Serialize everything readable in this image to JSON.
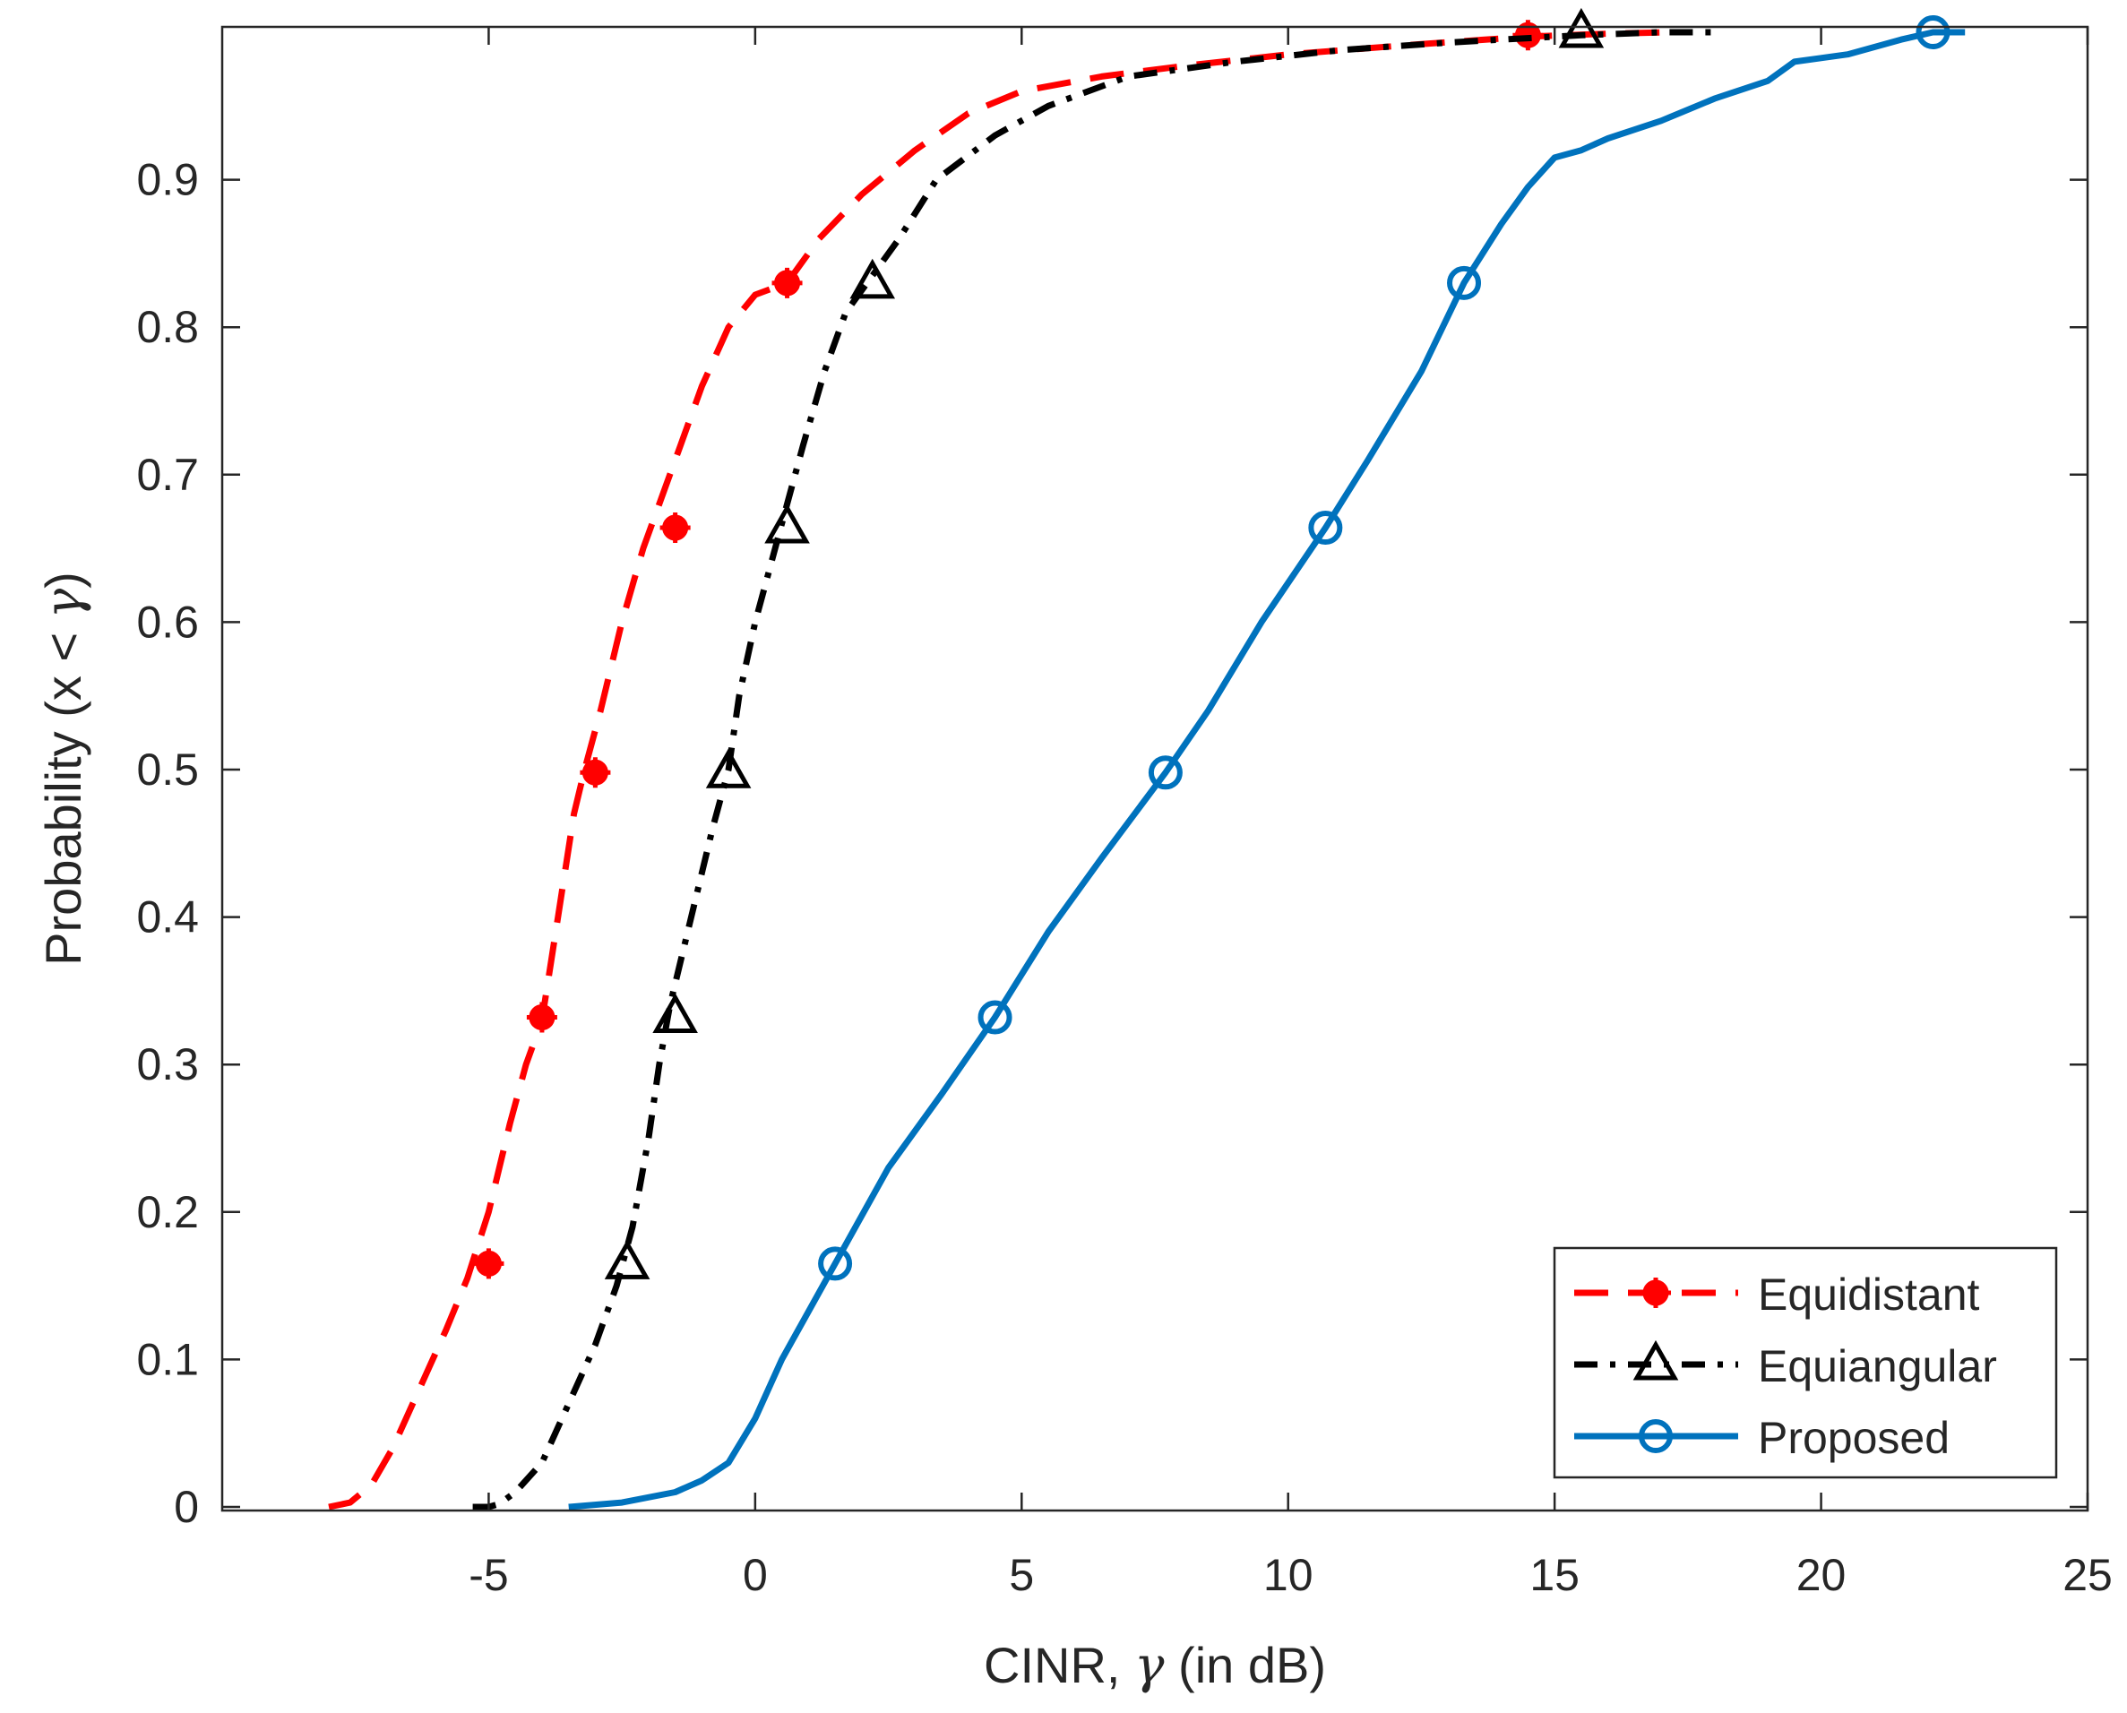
{
  "chart_data": {
    "type": "line",
    "title": "",
    "xlabel_prefix": "CINR, ",
    "xlabel_symbol": "γ",
    "xlabel_suffix": " (in dB)",
    "ylabel_prefix": "Probability (x < ",
    "ylabel_symbol": "γ",
    "ylabel_suffix": ")",
    "xlim": [
      -10,
      25
    ],
    "ylim": [
      0,
      1
    ],
    "xticks": [
      -5,
      0,
      5,
      10,
      15,
      20,
      25
    ],
    "xtick_labels": [
      "-5",
      "0",
      "5",
      "10",
      "15",
      "20",
      "25"
    ],
    "yticks": [
      0,
      0.1,
      0.2,
      0.3,
      0.4,
      0.5,
      0.6,
      0.7,
      0.8,
      0.9
    ],
    "ytick_labels": [
      "0",
      "0.1",
      "0.2",
      "0.3",
      "0.4",
      "0.5",
      "0.6",
      "0.7",
      "0.8",
      "0.9"
    ],
    "grid": false,
    "legend_position": "bottom-right",
    "series": [
      {
        "name": "Equidistant",
        "color": "#ff0000",
        "line_style": "dashed",
        "marker": "filled-circle-cross",
        "x": [
          -8.0,
          -7.6,
          -7.2,
          -6.8,
          -6.3,
          -5.8,
          -5.4,
          -5.0,
          -4.6,
          -4.3,
          -4.0,
          -3.7,
          -3.4,
          -3.2,
          -2.9,
          -2.5,
          -2.1,
          -1.7,
          -1.4,
          -1.0,
          -0.5,
          0.0,
          0.6,
          1.2,
          2.0,
          3.0,
          4.0,
          5.0,
          6.5,
          8.0,
          10.0,
          12.5,
          14.5,
          16.0,
          17.2
        ],
        "y": [
          0.0,
          0.003,
          0.015,
          0.04,
          0.08,
          0.12,
          0.155,
          0.2,
          0.26,
          0.3,
          0.33,
          0.4,
          0.47,
          0.5,
          0.54,
          0.6,
          0.65,
          0.69,
          0.72,
          0.76,
          0.8,
          0.822,
          0.83,
          0.86,
          0.89,
          0.92,
          0.945,
          0.96,
          0.97,
          0.977,
          0.985,
          0.992,
          0.997,
          0.999,
          1.0
        ],
        "marker_x": [
          -5.0,
          -4.0,
          -3.0,
          -1.5,
          0.6,
          14.5
        ],
        "marker_y": [
          0.165,
          0.332,
          0.498,
          0.664,
          0.83,
          0.998
        ]
      },
      {
        "name": "Equiangular",
        "color": "#000000",
        "line_style": "dash-dot",
        "marker": "triangle",
        "x": [
          -5.3,
          -5.0,
          -4.8,
          -4.5,
          -4.0,
          -3.5,
          -3.0,
          -2.6,
          -2.3,
          -2.0,
          -1.8,
          -1.6,
          -1.4,
          -1.2,
          -1.0,
          -0.8,
          -0.5,
          -0.3,
          0.0,
          0.3,
          0.6,
          0.9,
          1.3,
          1.7,
          2.1,
          2.7,
          3.4,
          4.5,
          5.5,
          7.0,
          9.0,
          11.0,
          13.0,
          15.5,
          17.0,
          18.1
        ],
        "y": [
          0.0,
          0.0,
          0.002,
          0.01,
          0.03,
          0.07,
          0.11,
          0.15,
          0.19,
          0.25,
          0.3,
          0.34,
          0.37,
          0.4,
          0.43,
          0.46,
          0.5,
          0.55,
          0.6,
          0.64,
          0.68,
          0.72,
          0.77,
          0.81,
          0.83,
          0.86,
          0.9,
          0.93,
          0.95,
          0.97,
          0.98,
          0.988,
          0.993,
          0.998,
          1.0,
          1.0
        ],
        "marker_x": [
          -2.4,
          -1.5,
          -0.5,
          0.6,
          2.2,
          15.5
        ],
        "marker_y": [
          0.165,
          0.332,
          0.498,
          0.664,
          0.83,
          1.0
        ]
      },
      {
        "name": "Proposed",
        "color": "#0072bd",
        "line_style": "solid",
        "marker": "circle",
        "x": [
          -3.5,
          -2.5,
          -1.5,
          -1.0,
          -0.5,
          0.0,
          0.5,
          1.5,
          2.5,
          3.5,
          4.5,
          5.5,
          6.5,
          7.7,
          8.5,
          9.5,
          10.7,
          11.5,
          12.5,
          13.3,
          14.0,
          14.5,
          15.0,
          15.5,
          16.0,
          17.0,
          18.0,
          19.0,
          19.5,
          20.5,
          21.5,
          22.1,
          22.7
        ],
        "y": [
          0.0,
          0.003,
          0.01,
          0.018,
          0.03,
          0.06,
          0.1,
          0.165,
          0.23,
          0.28,
          0.332,
          0.39,
          0.44,
          0.498,
          0.54,
          0.6,
          0.664,
          0.71,
          0.77,
          0.83,
          0.87,
          0.895,
          0.915,
          0.92,
          0.928,
          0.94,
          0.955,
          0.967,
          0.98,
          0.985,
          0.995,
          1.0,
          1.0
        ],
        "marker_x": [
          1.5,
          4.5,
          7.7,
          10.7,
          13.3,
          22.1
        ],
        "marker_y": [
          0.165,
          0.332,
          0.498,
          0.664,
          0.83,
          1.0
        ]
      }
    ]
  }
}
